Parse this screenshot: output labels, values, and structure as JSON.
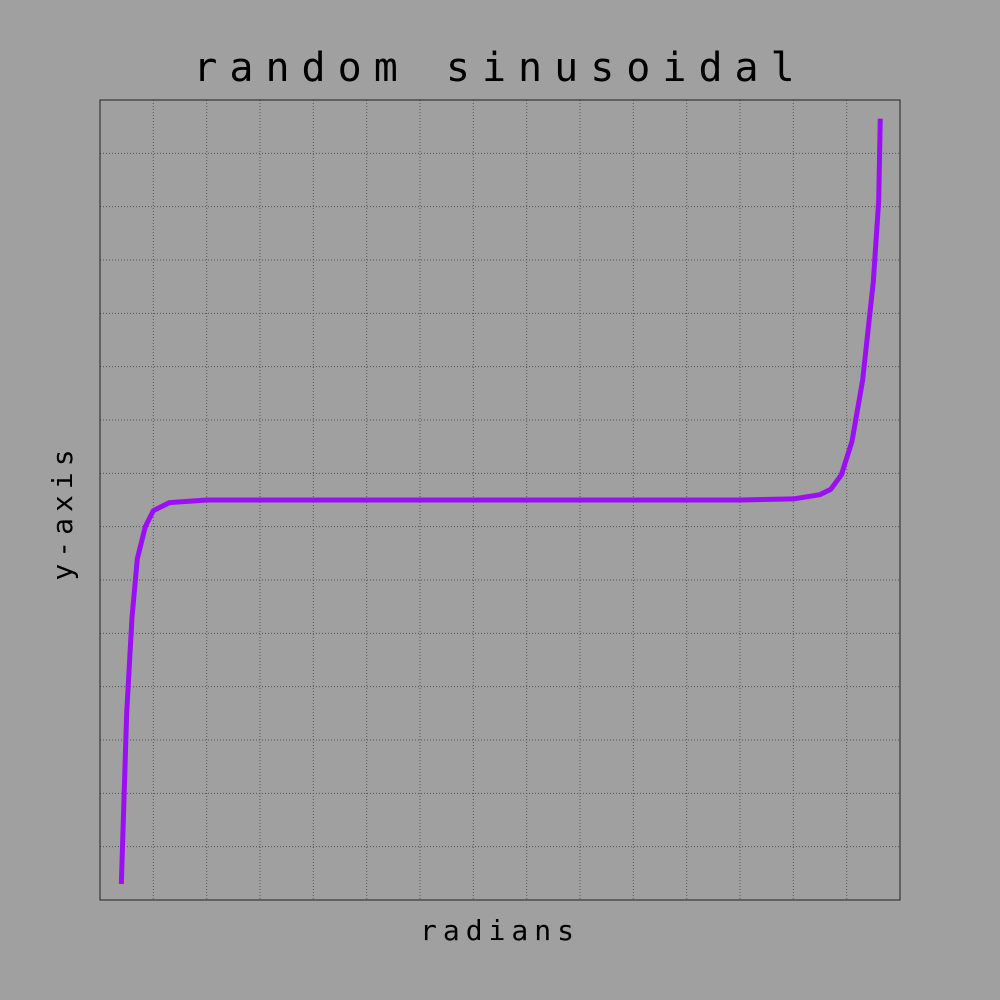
{
  "chart_data": {
    "type": "line",
    "title": "random sinusoidal",
    "x_label": "radians",
    "y_label": "y-axis",
    "x": [
      0.4,
      0.5,
      0.6,
      0.7,
      0.85,
      1.0,
      1.3,
      2,
      4,
      6,
      8,
      10,
      12,
      13,
      13.5,
      13.7,
      13.9,
      14.1,
      14.3,
      14.5,
      14.6,
      14.63
    ],
    "series": [
      {
        "color": "#9b10f2",
        "values": [
          0.3,
          3.5,
          5.3,
          6.4,
          7.0,
          7.3,
          7.45,
          7.5,
          7.5,
          7.5,
          7.5,
          7.5,
          7.5,
          7.52,
          7.6,
          7.7,
          7.97,
          8.6,
          9.75,
          11.6,
          13.1,
          14.65
        ]
      }
    ],
    "xlim": [
      0,
      15
    ],
    "ylim": [
      0,
      15
    ],
    "xticks": [
      0,
      1,
      2,
      3,
      4,
      5,
      6,
      7,
      8,
      9,
      10,
      11,
      12,
      13,
      14,
      15
    ],
    "yticks": [
      0,
      1,
      2,
      3,
      4,
      5,
      6,
      7,
      8,
      9,
      10,
      11,
      12,
      13,
      14,
      15
    ],
    "grid": true
  }
}
